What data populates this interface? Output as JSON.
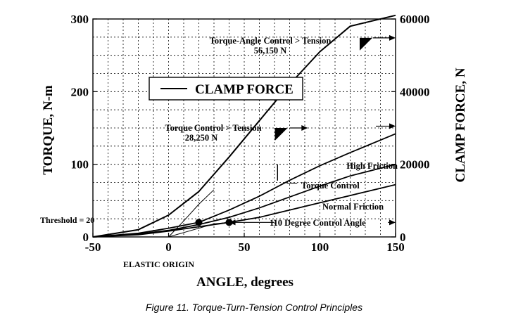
{
  "chart_data": {
    "type": "line",
    "title": "",
    "xlabel": "ANGLE, degrees",
    "ylabel_left": "TORQUE, N-m",
    "ylabel_right": "CLAMP FORCE, N",
    "xlim": [
      -50,
      150
    ],
    "ylim_left": [
      0,
      300
    ],
    "ylim_right": [
      0,
      60000
    ],
    "x_ticks": [
      -50,
      0,
      50,
      100,
      150
    ],
    "x_tick_labels": [
      "-50",
      "0",
      "50",
      "100",
      "150"
    ],
    "y_left_ticks": [
      0,
      100,
      200,
      300
    ],
    "y_left_tick_labels": [
      "0",
      "100",
      "200",
      "300"
    ],
    "y_right_ticks": [
      0,
      20000,
      40000,
      60000
    ],
    "y_right_tick_labels": [
      "0",
      "20000",
      "40000",
      "60000"
    ],
    "grid": true,
    "legend": {
      "label": "CLAMP FORCE",
      "placement": "upper-left"
    },
    "series": [
      {
        "name": "CLAMP FORCE",
        "axis": "right",
        "x": [
          -50,
          -20,
          0,
          20,
          40,
          60,
          80,
          100,
          120,
          150
        ],
        "values": [
          0,
          2000,
          6000,
          12500,
          22000,
          32000,
          42000,
          51000,
          58000,
          61000
        ]
      },
      {
        "name": "High Friction",
        "axis": "left",
        "x": [
          -50,
          -20,
          0,
          20,
          40,
          60,
          80,
          100,
          120,
          150
        ],
        "values": [
          0,
          5,
          12,
          20,
          37,
          56,
          78,
          98,
          116,
          142
        ]
      },
      {
        "name": "Normal Friction",
        "axis": "left",
        "x": [
          -50,
          -20,
          0,
          20,
          40,
          60,
          80,
          100,
          120,
          150
        ],
        "values": [
          0,
          3,
          8,
          14,
          20,
          27,
          37,
          47,
          57,
          72
        ]
      },
      {
        "name": "",
        "axis": "left",
        "x": [
          -50,
          -20,
          0,
          20,
          40,
          60,
          80,
          100,
          120,
          150
        ],
        "values": [
          0,
          4,
          9,
          17,
          27,
          40,
          55,
          70,
          84,
          100
        ]
      },
      {
        "name": "",
        "axis": "left",
        "x": [
          0,
          10,
          20,
          30
        ],
        "values": [
          0,
          22,
          45,
          65
        ]
      },
      {
        "name": "",
        "axis": "left",
        "x": [
          0,
          10,
          20,
          30,
          40
        ],
        "values": [
          0,
          6,
          12,
          18,
          20
        ]
      }
    ],
    "markers": [
      {
        "x": 20,
        "y": 20,
        "axis": "left",
        "shape": "dot"
      },
      {
        "x": 40,
        "y": 20,
        "axis": "left",
        "shape": "dot"
      }
    ],
    "annotations": [
      {
        "text": "Torque-Angle Control > Tension",
        "x": 60,
        "y_right": 57500
      },
      {
        "text": "56,150 N",
        "x": 60,
        "y_right": 55000
      },
      {
        "text": "Torque Control > Tension",
        "x": 20,
        "y_right": 31500
      },
      {
        "text": "28,250 N",
        "x": 20,
        "y_right": 29000
      },
      {
        "text": "High Friction",
        "x": 136,
        "y_right": 19200
      },
      {
        "text": "Torque Control",
        "x": 100,
        "y_right": 14200
      },
      {
        "text": "Normal Friction",
        "x": 115,
        "y_right": 8500
      },
      {
        "text": "110 Degree Control Angle",
        "x": 105,
        "y_right": 4000
      },
      {
        "text": "Threshold = 20",
        "x": -48,
        "y_right": 4000
      },
      {
        "text": "ELASTIC ORIGIN",
        "x": 5,
        "y_right": -7000
      }
    ]
  },
  "caption": "Figure 11. Torque-Turn-Tension Control Principles"
}
